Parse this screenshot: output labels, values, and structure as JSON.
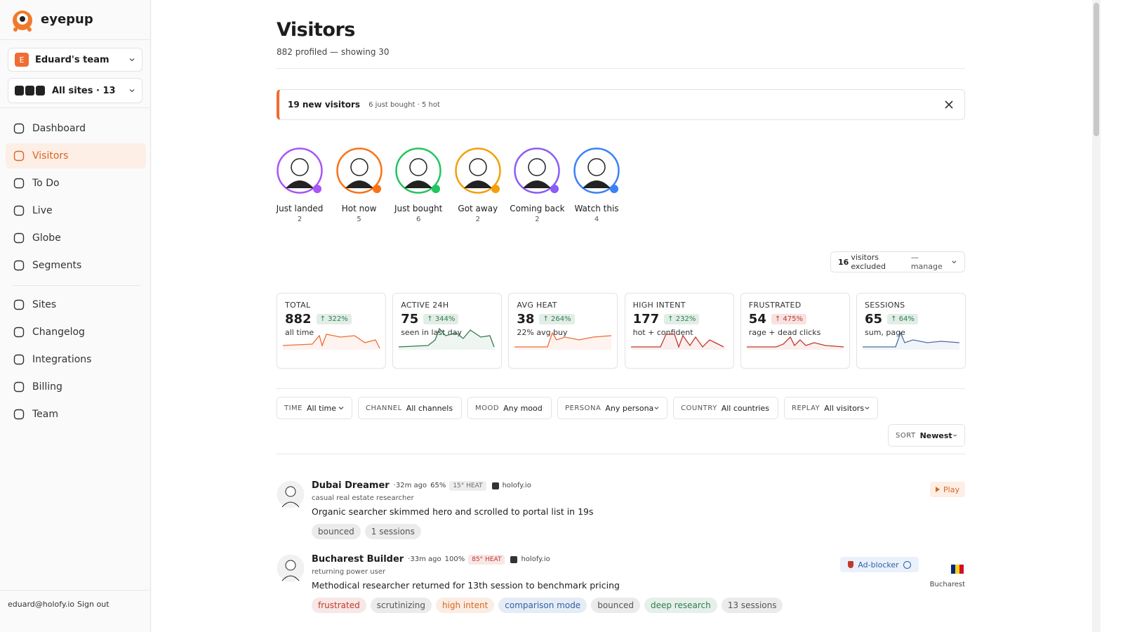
{
  "sidebar": {
    "brand": "eyepup",
    "team": {
      "initial": "E",
      "name": "Eduard's team"
    },
    "sites": "All sites · 13",
    "nav": [
      "Dashboard",
      "Visitors",
      "To Do",
      "Live",
      "Globe",
      "Segments"
    ],
    "nav2": [
      "Sites",
      "Changelog",
      "Integrations",
      "Billing",
      "Team"
    ],
    "footer": {
      "email": "eduard@holofy.io",
      "signout": "Sign out"
    }
  },
  "header": {
    "title": "Visitors",
    "subtitle": "882 profiled — showing 30"
  },
  "banner": {
    "title": "19 new visitors",
    "detail": "6 just bought · 5 hot"
  },
  "personas": [
    {
      "label": "Just landed",
      "count": 2,
      "color": "#a855f7"
    },
    {
      "label": "Hot now",
      "count": 5,
      "color": "#f97316"
    },
    {
      "label": "Just bought",
      "count": 6,
      "color": "#22c55e"
    },
    {
      "label": "Got away",
      "count": 2,
      "color": "#f59e0b"
    },
    {
      "label": "Coming back",
      "count": 2,
      "color": "#8b5cf6"
    },
    {
      "label": "Watch this",
      "count": 4,
      "color": "#3b82f6"
    }
  ],
  "excluded": {
    "count": 16,
    "text": "visitors excluded",
    "manage": "— manage"
  },
  "stats": [
    {
      "label": "TOTAL",
      "value": 882,
      "change": "322%",
      "note": "all time",
      "color": "#ef6c35",
      "change_color": "#2e7d4f"
    },
    {
      "label": "ACTIVE 24H",
      "value": 75,
      "change": "344%",
      "note": "seen in last day",
      "color": "#2e7d4f",
      "change_color": "#2e7d4f"
    },
    {
      "label": "AVG HEAT",
      "value": 38,
      "change": "264%",
      "note": "22% avg buy",
      "color": "#ef6c35",
      "change_color": "#2e7d4f"
    },
    {
      "label": "HIGH INTENT",
      "value": 177,
      "change": "232%",
      "note": "hot + confident",
      "color": "#c0392b",
      "change_color": "#2e7d4f"
    },
    {
      "label": "FRUSTRATED",
      "value": 54,
      "change": "475%",
      "note": "rage + dead clicks",
      "color": "#c0392b",
      "change_color": "#c0392b"
    },
    {
      "label": "SESSIONS",
      "value": 65,
      "change": "64%",
      "note": "sum, page",
      "color": "#4a6fa5",
      "change_color": "#2e7d4f"
    }
  ],
  "filters": [
    {
      "label": "TIME",
      "value": "All time"
    },
    {
      "label": "CHANNEL",
      "value": "All channels"
    },
    {
      "label": "MOOD",
      "value": "Any mood"
    },
    {
      "label": "PERSONA",
      "value": "Any persona"
    },
    {
      "label": "COUNTRY",
      "value": "All countries"
    },
    {
      "label": "REPLAY",
      "value": "All visitors"
    }
  ],
  "sort": {
    "label": "SORT",
    "value": "Newest"
  },
  "visitors": [
    {
      "name": "Dubai Dreamer",
      "time": "·32m ago",
      "pct": "65%",
      "heat": "15° HEAT",
      "heat_color": "#6b6b6b",
      "site": "holofy.io",
      "persona": "casual real estate researcher",
      "summary": "Organic searcher skimmed hero and scrolled to portal list in 19s",
      "tags": [
        {
          "text": "bounced",
          "color": "#555555"
        },
        {
          "text": "1 sessions",
          "color": "#555555"
        }
      ],
      "action": "Play"
    },
    {
      "name": "Bucharest Builder",
      "time": "·33m ago",
      "pct": "100%",
      "heat": "85° HEAT",
      "heat_color": "#c0392b",
      "site": "holofy.io",
      "persona": "returning power user",
      "summary": "Methodical researcher returned for 13th session to benchmark pricing",
      "tags": [
        {
          "text": "frustrated",
          "color": "#c0392b"
        },
        {
          "text": "scrutinizing",
          "color": "#555555"
        },
        {
          "text": "high intent",
          "color": "#d9661f"
        },
        {
          "text": "comparison mode",
          "color": "#2f5fa8"
        },
        {
          "text": "bounced",
          "color": "#555555"
        },
        {
          "text": "deep research",
          "color": "#2e7d4f"
        },
        {
          "text": "13 sessions",
          "color": "#555555"
        }
      ],
      "badge": "Ad-blocker",
      "city": "Bucharest"
    }
  ]
}
